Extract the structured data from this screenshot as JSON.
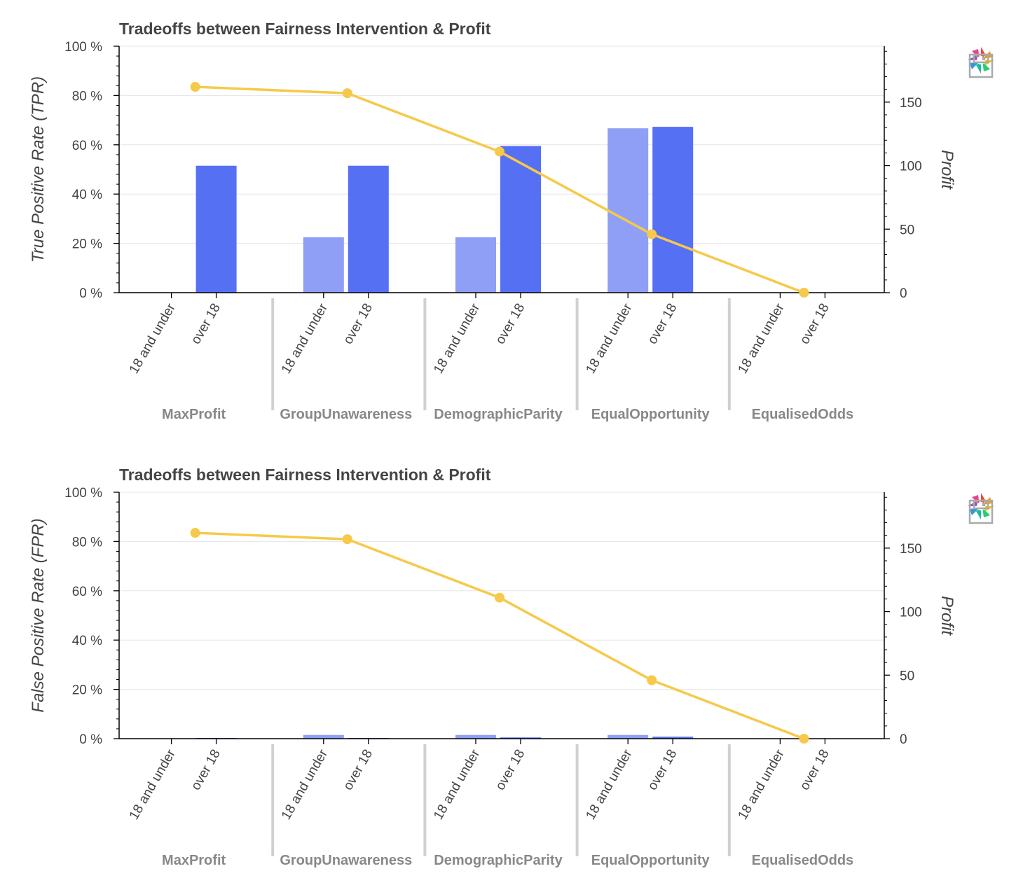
{
  "chart_data": [
    {
      "type": "bar",
      "title": "Tradeoffs between Fairness Intervention & Profit",
      "ylabel": "True Positive Rate (TPR)",
      "y2label": "Profit",
      "ylim": [
        0,
        100
      ],
      "y2lim": [
        0,
        194
      ],
      "y_ticks": [
        "0 %",
        "20 %",
        "40 %",
        "60 %",
        "80 %",
        "100 %"
      ],
      "y2_ticks": [
        "0",
        "50",
        "100",
        "150"
      ],
      "groups": [
        "MaxProfit",
        "GroupUnawareness",
        "DemographicParity",
        "EqualOpportunity",
        "EqualisedOdds"
      ],
      "subcategories": [
        "18 and under",
        "over 18"
      ],
      "series": [
        {
          "name": "18 and under",
          "color": "#8f9ff5",
          "values": [
            0,
            22.5,
            22.5,
            66.7,
            0
          ]
        },
        {
          "name": "over 18",
          "color": "#5670f4",
          "values": [
            51.5,
            51.5,
            59.5,
            67.3,
            0
          ]
        }
      ],
      "profit_line": {
        "color": "#f6c94a",
        "values": [
          162,
          157,
          111,
          46,
          0
        ]
      },
      "grid": true
    },
    {
      "type": "bar",
      "title": "Tradeoffs between Fairness Intervention & Profit",
      "ylabel": "False Positive Rate (FPR)",
      "y2label": "Profit",
      "ylim": [
        0,
        100
      ],
      "y2lim": [
        0,
        194
      ],
      "y_ticks": [
        "0 %",
        "20 %",
        "40 %",
        "60 %",
        "80 %",
        "100 %"
      ],
      "y2_ticks": [
        "0",
        "50",
        "100",
        "150"
      ],
      "groups": [
        "MaxProfit",
        "GroupUnawareness",
        "DemographicParity",
        "EqualOpportunity",
        "EqualisedOdds"
      ],
      "subcategories": [
        "18 and under",
        "over 18"
      ],
      "series": [
        {
          "name": "18 and under",
          "color": "#8f9ff5",
          "values": [
            0,
            1.5,
            1.5,
            1.5,
            0
          ]
        },
        {
          "name": "over 18",
          "color": "#5670f4",
          "values": [
            0.3,
            0.3,
            0.5,
            0.8,
            0
          ]
        }
      ],
      "profit_line": {
        "color": "#f6c94a",
        "values": [
          162,
          157,
          111,
          46,
          0
        ]
      },
      "grid": true
    }
  ],
  "toolbar": {
    "logo_icon": "bokeh-logo-icon",
    "save_icon": "save-icon"
  }
}
